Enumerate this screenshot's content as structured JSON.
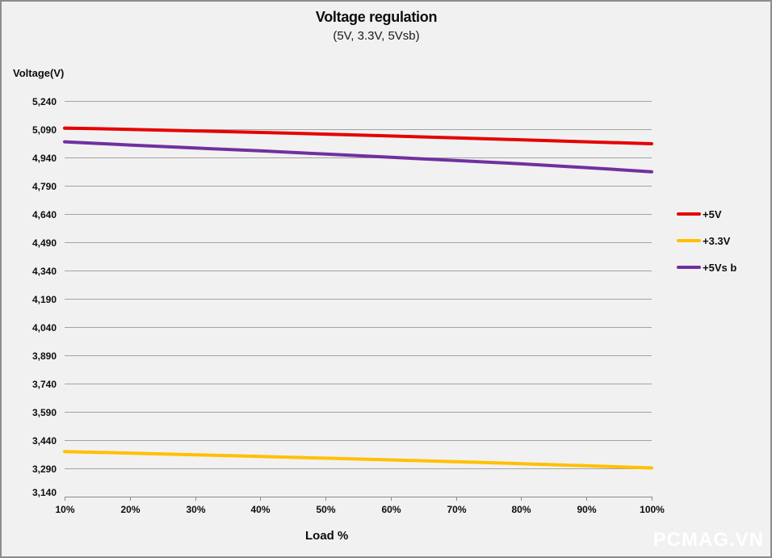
{
  "header": {
    "title": "Voltage regulation",
    "subtitle": "(5V, 3.3V, 5Vsb)"
  },
  "watermark": "PCMAG.VN",
  "colors": {
    "background": "#f1f1f1",
    "border": "#8c8c8c",
    "gridline": "#a3a3a3",
    "axis": "#8c8c8c",
    "red_series": "#e60000",
    "yellow_series": "#ffc000",
    "purple_series": "#7030a0",
    "text": "#0d0d0d",
    "watermark_text": "#ffffff"
  },
  "chart_data": {
    "type": "line",
    "title": "Voltage regulation",
    "subtitle": "(5V, 3.3V, 5Vsb)",
    "xlabel": "Load %",
    "ylabel": "Voltage(V)",
    "categories": [
      "10%",
      "20%",
      "30%",
      "40%",
      "50%",
      "60%",
      "70%",
      "80%",
      "90%",
      "100%"
    ],
    "series": [
      {
        "name": "+5V",
        "color": "#e60000",
        "values": [
          5096,
          5089,
          5081,
          5073,
          5064,
          5054,
          5044,
          5034,
          5023,
          5013
        ]
      },
      {
        "name": "+3.3V",
        "color": "#ffc000",
        "values": [
          3379,
          3371,
          3362,
          3353,
          3344,
          3335,
          3325,
          3315,
          3304,
          3292
        ]
      },
      {
        "name": "+5Vs b",
        "color": "#7030a0",
        "values": [
          5023,
          5006,
          4990,
          4975,
          4958,
          4941,
          4924,
          4906,
          4886,
          4864
        ]
      }
    ],
    "ylim": [
      3140,
      5240
    ],
    "ytick_step": 150,
    "ytick_labels": [
      "5,240",
      "5,090",
      "4,940",
      "4,790",
      "4,640",
      "4,490",
      "4,340",
      "4,190",
      "4,040",
      "3,890",
      "3,740",
      "3,590",
      "3,440",
      "3,290",
      "3,140"
    ],
    "grid": true,
    "legend_position": "right"
  }
}
